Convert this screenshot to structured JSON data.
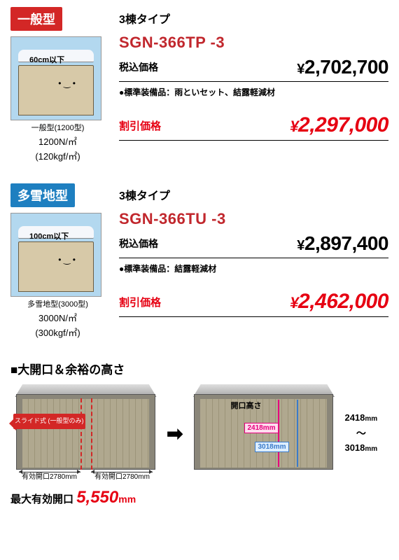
{
  "products": [
    {
      "badge_label": "一般型",
      "badge_class": "badge-red",
      "illust_height": "60cm以下",
      "illust_caption": "一般型(1200型)",
      "spec1": "1200N/㎡",
      "spec2": "(120kgf/㎡)",
      "type_title": "3棟タイプ",
      "model": "SGN-366TP -3",
      "price_label": "税込価格",
      "price_value": "2,702,700",
      "equip": "●標準装備品：雨といセット、結露軽減材",
      "discount_label": "割引価格",
      "discount_value": "2,297,000"
    },
    {
      "badge_label": "多雪地型",
      "badge_class": "badge-blue",
      "illust_height": "100cm以下",
      "illust_caption": "多雪地型(3000型)",
      "spec1": "3000N/㎡",
      "spec2": "(300kgf/㎡)",
      "type_title": "3棟タイプ",
      "model": "SGN-366TU -3",
      "price_label": "税込価格",
      "price_value": "2,897,400",
      "equip": "●標準装備品：結露軽減材",
      "discount_label": "割引価格",
      "discount_value": "2,462,000"
    }
  ],
  "opening": {
    "section_title": "■大開口＆余裕の高さ",
    "slide_label": "スライド式\n(一般型のみ)",
    "dim1_label": "有効開口2780mm",
    "dim2_label": "有効開口2780mm",
    "opening_height_label": "開口高さ",
    "h_red": "2418mm",
    "h_blue": "3018mm",
    "range_top": "2418",
    "range_bottom": "3018",
    "range_unit": "mm",
    "max_label": "最大有効開口",
    "max_value": "5,550",
    "max_unit": "mm"
  }
}
